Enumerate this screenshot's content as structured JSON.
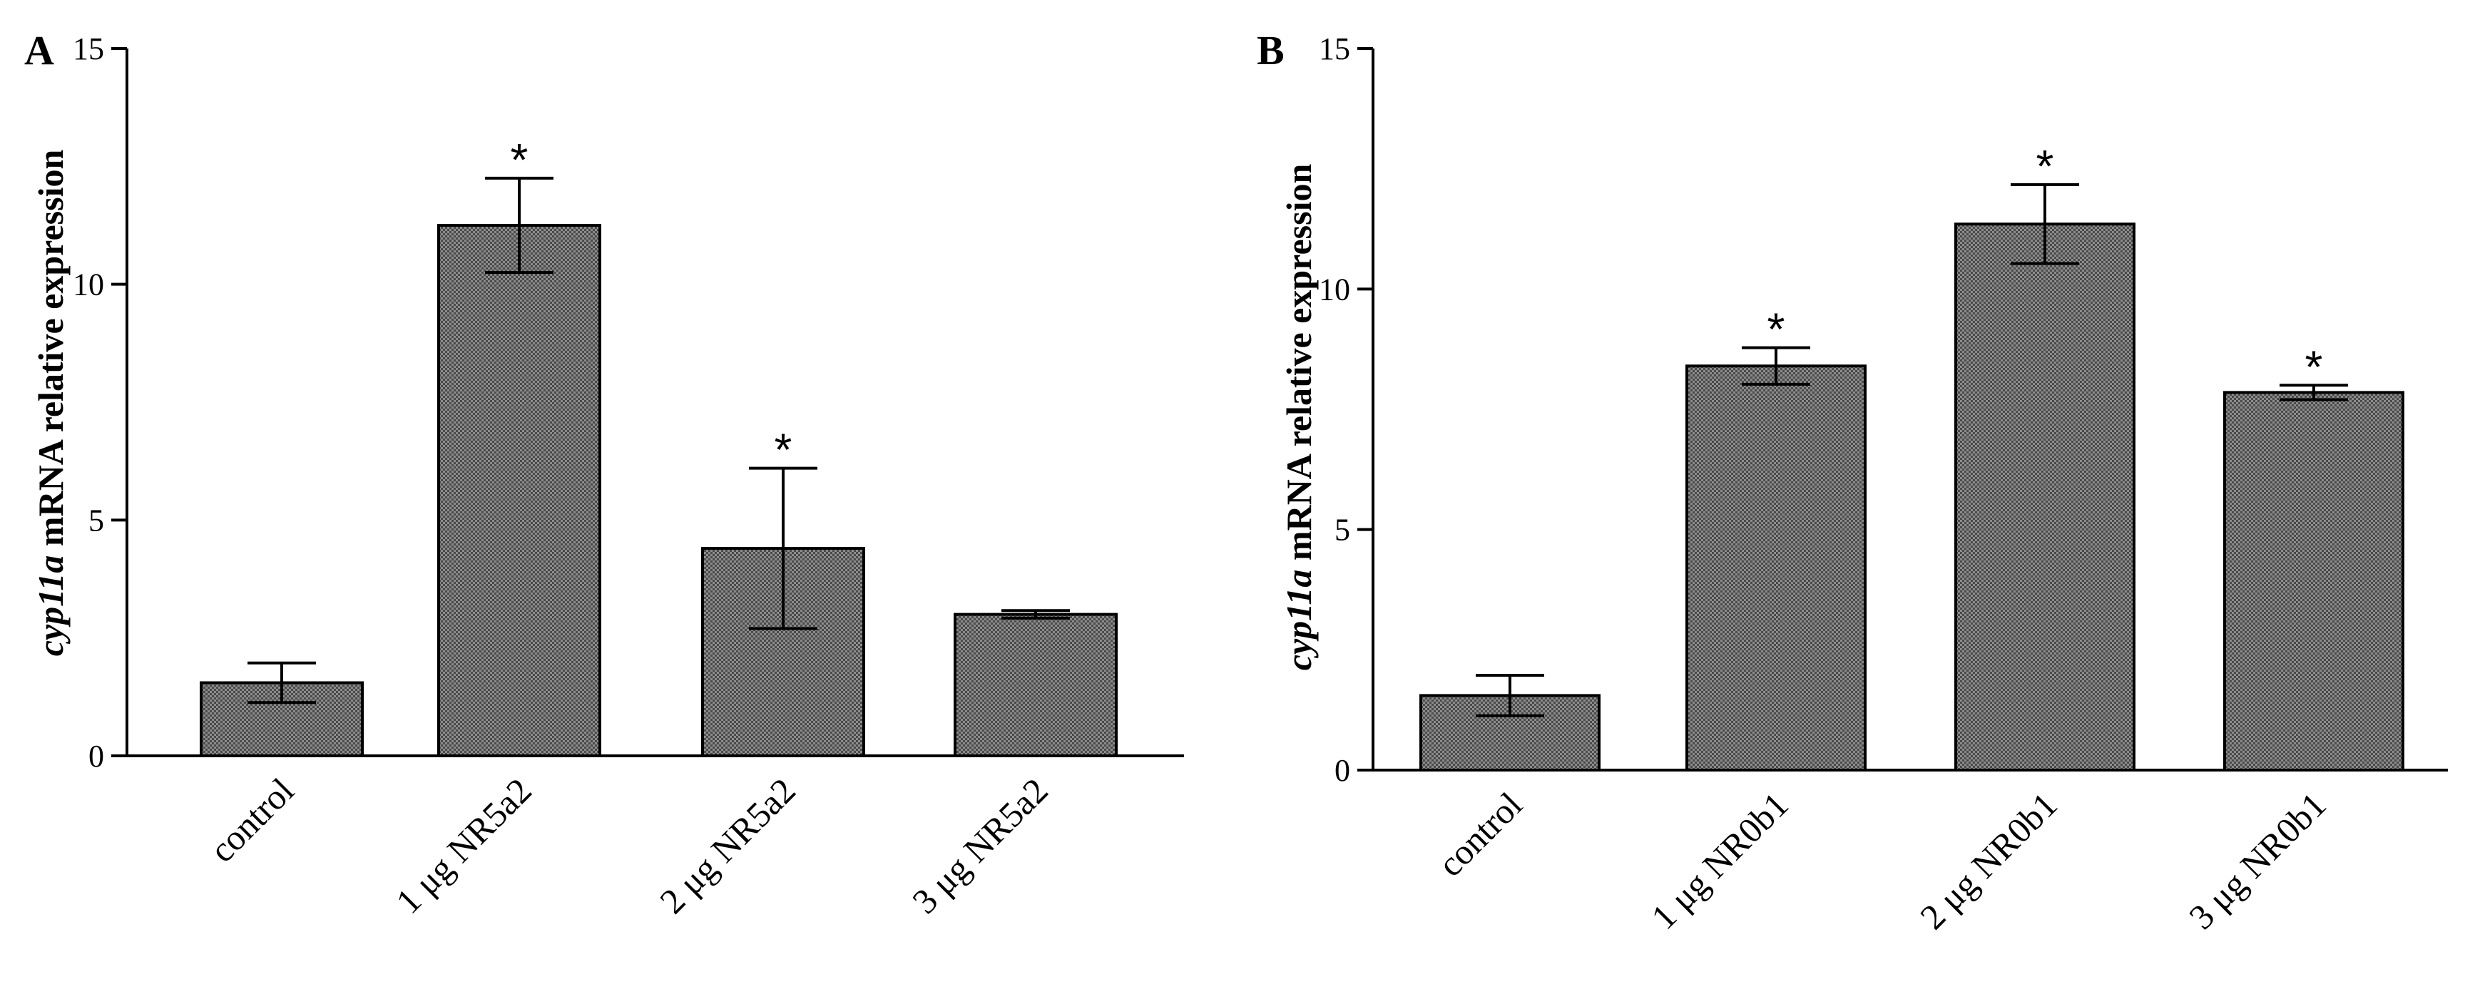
{
  "colors": {
    "bar_fill": "#7a7a7a",
    "bar_fill_dark": "#5e5e5e",
    "bar_fill_light": "#9a9a9a",
    "axis": "#000000",
    "background": "#ffffff"
  },
  "chart_data": [
    {
      "type": "bar",
      "panel": "A",
      "title": "",
      "xlabel": "",
      "ylabel_italic": "cyp11a",
      "ylabel_rest": " mRNA relative  expression",
      "ylim": [
        0,
        15
      ],
      "yticks": [
        0,
        5,
        10,
        15
      ],
      "ytick_labels": [
        "0",
        "5",
        "10",
        "15"
      ],
      "categories": [
        "control",
        "1 μg NR5a2",
        "2 μg NR5a2",
        "3 μg NR5a2"
      ],
      "values": [
        1.55,
        11.25,
        4.4,
        3.0
      ],
      "errors": [
        0.42,
        1.0,
        1.7,
        0.08
      ],
      "significance": [
        "",
        "*",
        "*",
        ""
      ]
    },
    {
      "type": "bar",
      "panel": "B",
      "title": "",
      "xlabel": "",
      "ylabel_italic": "cyp11a",
      "ylabel_rest": " mRNA relative  expression",
      "ylim": [
        0,
        15
      ],
      "yticks": [
        0,
        5,
        10,
        15
      ],
      "ytick_labels": [
        "0",
        "5",
        "10",
        "15"
      ],
      "categories": [
        "control",
        "1 μg NR0b1",
        "2 μg NR0b1",
        "3 μg NR0b1"
      ],
      "values": [
        1.55,
        8.4,
        11.35,
        7.85
      ],
      "errors": [
        0.42,
        0.38,
        0.82,
        0.15
      ],
      "significance": [
        "",
        "*",
        "*",
        "*"
      ]
    }
  ]
}
